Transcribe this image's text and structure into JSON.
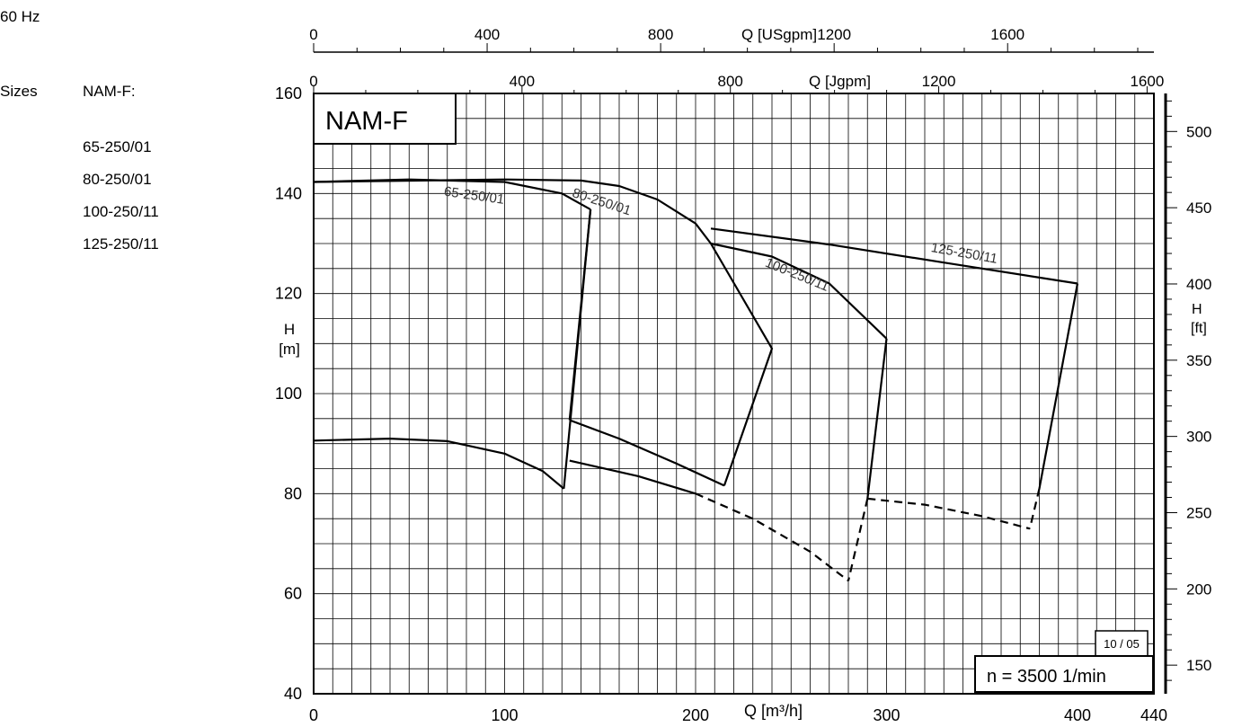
{
  "frequency": "60 Hz",
  "sizes_label": "Sizes",
  "series_title": "NAM-F:",
  "size_list": [
    "65-250/01",
    "80-250/01",
    "100-250/11",
    "125-250/11"
  ],
  "chart_data": {
    "type": "line",
    "title": "NAM-F",
    "xlabel": "Q [m³/h]",
    "ylabel": "H [m]",
    "xlim": [
      0,
      440
    ],
    "ylim": [
      40,
      160
    ],
    "x_ticks": [
      "0",
      "100",
      "200",
      "300",
      "400",
      "440"
    ],
    "y_ticks": [
      "40",
      "60",
      "80",
      "100",
      "120",
      "140",
      "160"
    ],
    "top_axis_1": {
      "label": "Q [USgpm]",
      "ticks": [
        "0",
        "400",
        "800",
        "1200",
        "1600"
      ],
      "values": [
        0,
        400,
        800,
        1200,
        1600
      ]
    },
    "top_axis_2": {
      "label": "Q [Jgpm]",
      "ticks": [
        "0",
        "400",
        "800",
        "1200",
        "1600"
      ],
      "values": [
        0,
        400,
        800,
        1200,
        1600
      ]
    },
    "right_axis": {
      "label": "H [ft]",
      "ticks": [
        "150",
        "200",
        "250",
        "300",
        "350",
        "400",
        "450",
        "500"
      ],
      "values": [
        150,
        200,
        250,
        300,
        350,
        400,
        450,
        500
      ]
    },
    "speed_label": "n = 3500 1/min",
    "revision": "10 / 05",
    "grid": true,
    "series": [
      {
        "name": "65-250/01",
        "max_dia": [
          [
            0,
            142.3
          ],
          [
            50,
            142.8
          ],
          [
            100,
            142.3
          ],
          [
            130,
            140
          ],
          [
            145,
            136.8
          ]
        ],
        "min_dia": [
          [
            0,
            90.6
          ],
          [
            40,
            91
          ],
          [
            70,
            90.5
          ],
          [
            100,
            88
          ],
          [
            120,
            84.5
          ],
          [
            131,
            81
          ]
        ],
        "left": [
          [
            131,
            81
          ],
          [
            145,
            136.8
          ]
        ]
      },
      {
        "name": "80-250/01",
        "max_dia": [
          [
            0,
            142.3
          ],
          [
            100,
            142.8
          ],
          [
            140,
            142.6
          ],
          [
            160,
            141.5
          ],
          [
            180,
            138.8
          ],
          [
            200,
            134
          ]
        ],
        "min_dia": [
          [
            134,
            94.7
          ],
          [
            160,
            91
          ],
          [
            190,
            86
          ],
          [
            215,
            81.6
          ]
        ],
        "outer": [
          [
            200,
            134
          ],
          [
            208,
            130
          ],
          [
            240,
            109
          ],
          [
            215,
            81.6
          ]
        ],
        "left": [
          [
            134,
            94.7
          ],
          [
            145,
            136.8
          ]
        ]
      },
      {
        "name": "100-250/11",
        "max_dia": [
          [
            208,
            130
          ],
          [
            240,
            127.4
          ],
          [
            270,
            122
          ],
          [
            300,
            111
          ]
        ],
        "min_dia": [
          [
            134,
            86.6
          ],
          [
            170,
            83.5
          ],
          [
            200,
            80
          ]
        ],
        "min_dia_dashed": [
          [
            200,
            80
          ],
          [
            230,
            75
          ],
          [
            260,
            68.4
          ],
          [
            280,
            62.6
          ]
        ],
        "right": [
          [
            300,
            111
          ],
          [
            290,
            79
          ]
        ],
        "right_dashed": [
          [
            290,
            79
          ],
          [
            280,
            62.6
          ]
        ]
      },
      {
        "name": "125-250/11",
        "max_dia": [
          [
            208,
            133
          ],
          [
            270,
            129.8
          ],
          [
            330,
            126.2
          ],
          [
            400,
            122
          ]
        ],
        "min_dia_dashed": [
          [
            290,
            79
          ],
          [
            320,
            77.8
          ],
          [
            350,
            75.5
          ],
          [
            375,
            73
          ]
        ],
        "right": [
          [
            400,
            122
          ],
          [
            380,
            81
          ]
        ],
        "right_dashed": [
          [
            380,
            81
          ],
          [
            375,
            73
          ]
        ]
      }
    ]
  }
}
